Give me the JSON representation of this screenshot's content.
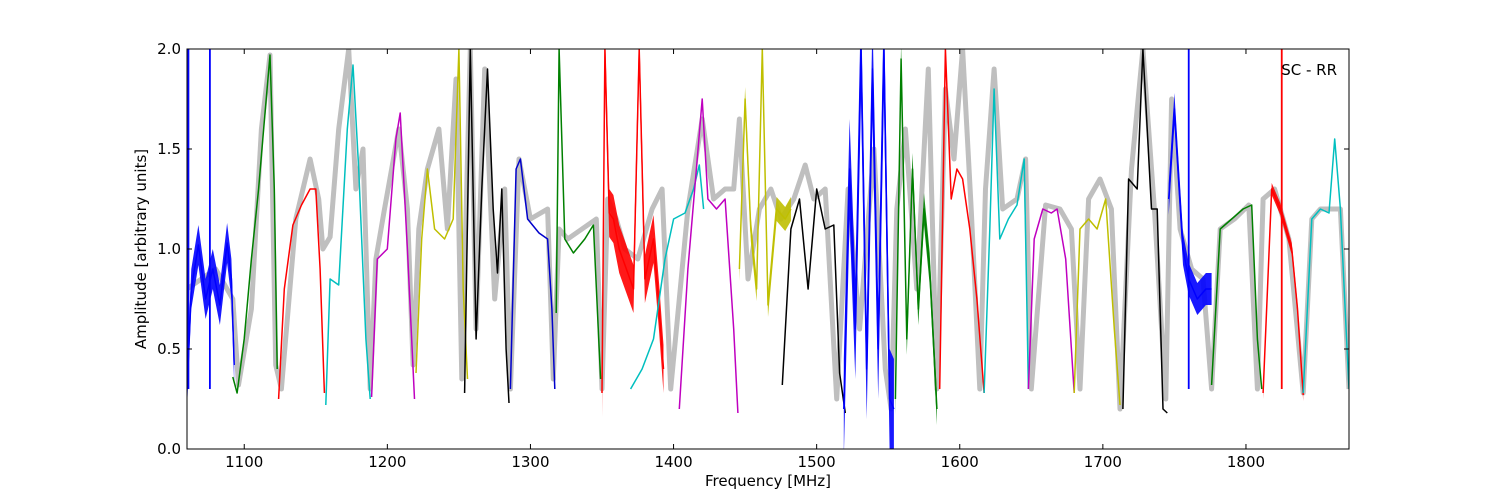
{
  "chart_data": {
    "type": "line",
    "annotation": "SC - RR",
    "xlabel": "Frequency [MHz]",
    "ylabel": "Amplitude [arbitrary units]",
    "xlim": [
      1060,
      1872
    ],
    "ylim": [
      0,
      2
    ],
    "x_ticks": [
      1100,
      1200,
      1300,
      1400,
      1500,
      1600,
      1700,
      1800
    ],
    "y_ticks": [
      0.0,
      0.5,
      1.0,
      1.5,
      2.0
    ],
    "x_tick_labels": [
      "1100",
      "1200",
      "1300",
      "1400",
      "1500",
      "1600",
      "1700",
      "1800"
    ],
    "y_tick_labels": [
      "0.0",
      "0.5",
      "1.0",
      "1.5",
      "2.0"
    ],
    "grid": false,
    "background_trace": {
      "color": "#bfbfbf",
      "x": [
        1060,
        1080,
        1092,
        1096,
        1105,
        1112,
        1118,
        1122,
        1126,
        1136,
        1146,
        1152,
        1155,
        1160,
        1166,
        1173,
        1178,
        1183,
        1188,
        1192,
        1198,
        1208,
        1214,
        1218,
        1222,
        1228,
        1236,
        1242,
        1248,
        1252,
        1258,
        1262,
        1268,
        1275,
        1282,
        1286,
        1292,
        1300,
        1312,
        1316,
        1320,
        1326,
        1336,
        1346,
        1350,
        1354,
        1360,
        1366,
        1375,
        1385,
        1392,
        1398,
        1410,
        1420,
        1428,
        1436,
        1442,
        1446,
        1452,
        1460,
        1468,
        1475,
        1484,
        1492,
        1498,
        1506,
        1514,
        1522,
        1530,
        1540,
        1548,
        1552,
        1556,
        1562,
        1570,
        1578,
        1584,
        1590,
        1596,
        1602,
        1608,
        1614,
        1618,
        1624,
        1630,
        1640,
        1646,
        1650,
        1660,
        1670,
        1678,
        1684,
        1690,
        1698,
        1706,
        1712,
        1720,
        1728,
        1736,
        1744,
        1748,
        1754,
        1762,
        1770,
        1776,
        1782,
        1792,
        1802,
        1808,
        1812,
        1820,
        1830,
        1840,
        1846,
        1852,
        1866,
        1872
      ],
      "y": [
        0.8,
        0.9,
        0.75,
        0.32,
        0.7,
        1.6,
        1.97,
        0.42,
        0.3,
        1.15,
        1.45,
        1.25,
        1.0,
        1.06,
        1.6,
        2.0,
        1.3,
        1.5,
        0.3,
        0.95,
        1.2,
        1.6,
        1.2,
        0.42,
        1.1,
        1.4,
        1.6,
        1.1,
        1.85,
        0.35,
        2.0,
        0.6,
        1.9,
        0.75,
        1.3,
        0.3,
        1.45,
        1.15,
        1.2,
        0.35,
        1.1,
        1.05,
        1.1,
        1.15,
        0.3,
        1.25,
        1.15,
        1.0,
        0.95,
        1.2,
        1.3,
        0.3,
        1.2,
        1.65,
        1.25,
        1.3,
        1.3,
        1.65,
        0.85,
        1.2,
        1.3,
        1.15,
        1.25,
        1.42,
        1.25,
        1.3,
        0.25,
        1.3,
        0.6,
        1.5,
        0.4,
        0.2,
        1.2,
        1.6,
        0.8,
        1.9,
        0.3,
        1.8,
        1.45,
        2.0,
        1.2,
        0.3,
        1.3,
        1.9,
        1.2,
        1.25,
        1.45,
        0.3,
        1.22,
        1.2,
        1.1,
        0.3,
        1.25,
        1.35,
        1.2,
        0.2,
        1.4,
        2.0,
        1.2,
        0.25,
        1.75,
        1.1,
        0.9,
        0.85,
        0.3,
        1.1,
        1.15,
        1.22,
        0.3,
        1.25,
        1.3,
        1.05,
        0.28,
        1.15,
        1.2,
        1.2,
        0.3
      ]
    },
    "series": [
      {
        "color": "#0000ff",
        "x": [
          1060,
          1063,
          1068,
          1073,
          1078,
          1083,
          1088,
          1091,
          1093
        ],
        "y": [
          0.3,
          0.8,
          1.02,
          0.75,
          0.9,
          0.72,
          1.03,
          0.85,
          0.42
        ],
        "band": 0.1,
        "spikes": [
          {
            "x": 1061,
            "y": 2.0
          },
          {
            "x": 1076,
            "y": 2.0
          }
        ]
      },
      {
        "color": "#008000",
        "x": [
          1092,
          1095,
          1100,
          1105,
          1110,
          1113,
          1118,
          1121,
          1123
        ],
        "y": [
          0.36,
          0.28,
          0.55,
          0.95,
          1.3,
          1.55,
          1.97,
          1.3,
          0.4
        ],
        "band": 0
      },
      {
        "color": "#ff0000",
        "x": [
          1124,
          1128,
          1134,
          1140,
          1146,
          1150,
          1153,
          1156
        ],
        "y": [
          0.25,
          0.8,
          1.12,
          1.22,
          1.3,
          1.3,
          0.9,
          0.28
        ],
        "band": 0
      },
      {
        "color": "#00bfbf",
        "x": [
          1157,
          1160,
          1166,
          1172,
          1176,
          1180,
          1185,
          1188
        ],
        "y": [
          0.22,
          0.85,
          0.82,
          1.6,
          1.92,
          1.4,
          0.55,
          0.25
        ],
        "band": 0
      },
      {
        "color": "#bf00bf",
        "x": [
          1189,
          1193,
          1200,
          1206,
          1209,
          1214,
          1219
        ],
        "y": [
          0.26,
          0.95,
          1.0,
          1.55,
          1.68,
          1.0,
          0.25
        ],
        "band": 0
      },
      {
        "color": "#bfbf00",
        "x": [
          1220,
          1224,
          1228,
          1233,
          1240,
          1246,
          1250,
          1253,
          1256
        ],
        "y": [
          0.38,
          1.05,
          1.4,
          1.1,
          1.05,
          1.15,
          2.0,
          0.8,
          0.35
        ],
        "band": 0
      },
      {
        "color": "#000000",
        "x": [
          1254,
          1258,
          1262,
          1266,
          1270,
          1274,
          1277,
          1280,
          1283,
          1285
        ],
        "y": [
          0.28,
          2.0,
          0.55,
          1.3,
          1.9,
          1.2,
          0.88,
          1.3,
          0.5,
          0.23
        ],
        "band": 0
      },
      {
        "color": "#0000cc",
        "x": [
          1286,
          1290,
          1293,
          1298,
          1306,
          1312,
          1315,
          1317
        ],
        "y": [
          0.3,
          1.4,
          1.45,
          1.15,
          1.08,
          1.05,
          0.7,
          0.3
        ],
        "band": 0
      },
      {
        "color": "#008000",
        "x": [
          1318,
          1320,
          1324,
          1330,
          1338,
          1344,
          1349
        ],
        "y": [
          0.68,
          2.0,
          1.05,
          0.98,
          1.05,
          1.12,
          0.35
        ],
        "band": 0
      },
      {
        "color": "#ff0000",
        "x": [
          1350,
          1352,
          1355,
          1358,
          1362,
          1368,
          1372,
          1376,
          1380,
          1386,
          1390,
          1393
        ],
        "y": [
          0.28,
          2.0,
          1.18,
          1.15,
          1.0,
          0.88,
          0.8,
          2.0,
          0.85,
          1.05,
          0.7,
          0.4
        ],
        "band": 0.12
      },
      {
        "color": "#00bfbf",
        "x": [
          1370,
          1378,
          1386,
          1394,
          1400,
          1408,
          1414,
          1418,
          1421
        ],
        "y": [
          0.3,
          0.4,
          0.55,
          0.95,
          1.15,
          1.18,
          1.3,
          1.42,
          1.2
        ],
        "band": 0
      },
      {
        "color": "#bf00bf",
        "x": [
          1404,
          1410,
          1416,
          1420,
          1424,
          1430,
          1436,
          1442,
          1445
        ],
        "y": [
          0.2,
          0.9,
          1.4,
          1.75,
          1.25,
          1.2,
          1.25,
          0.6,
          0.18
        ],
        "band": 0
      },
      {
        "color": "#bfbf00",
        "x": [
          1446,
          1450,
          1454,
          1458,
          1462,
          1466,
          1472,
          1478,
          1482
        ],
        "y": [
          0.9,
          1.75,
          1.1,
          0.8,
          2.0,
          0.72,
          1.2,
          1.15,
          1.2
        ],
        "band": 0.06
      },
      {
        "color": "#000000",
        "x": [
          1476,
          1482,
          1488,
          1494,
          1500,
          1506,
          1512,
          1516,
          1520
        ],
        "y": [
          0.32,
          1.1,
          1.25,
          0.8,
          1.3,
          1.1,
          1.12,
          0.38,
          0.18
        ],
        "band": 0
      },
      {
        "color": "#0000ff",
        "x": [
          1519,
          1523,
          1527,
          1531,
          1535,
          1539,
          1543,
          1547,
          1551,
          1554
        ],
        "y": [
          0.2,
          1.4,
          0.6,
          2.0,
          0.4,
          1.9,
          0.5,
          2.0,
          0.25,
          0.2
        ],
        "band": 0.25
      },
      {
        "color": "#008000",
        "x": [
          1555,
          1559,
          1563,
          1567,
          1571,
          1575,
          1579,
          1584
        ],
        "y": [
          0.25,
          1.95,
          0.55,
          1.4,
          0.7,
          1.2,
          0.9,
          0.2
        ],
        "band": 0.08
      },
      {
        "color": "#ff0000",
        "x": [
          1586,
          1590,
          1594,
          1598,
          1602,
          1607,
          1612,
          1617
        ],
        "y": [
          0.3,
          2.0,
          1.25,
          1.4,
          1.35,
          1.1,
          0.75,
          0.28
        ],
        "band": 0
      },
      {
        "color": "#00bfbf",
        "x": [
          1617,
          1621,
          1624,
          1628,
          1634,
          1640,
          1645,
          1648
        ],
        "y": [
          0.28,
          1.1,
          1.8,
          1.05,
          1.15,
          1.22,
          1.45,
          0.3
        ],
        "band": 0
      },
      {
        "color": "#bf00bf",
        "x": [
          1648,
          1652,
          1658,
          1664,
          1668,
          1674,
          1680
        ],
        "y": [
          0.3,
          1.05,
          1.2,
          1.18,
          1.2,
          0.95,
          0.28
        ],
        "band": 0
      },
      {
        "color": "#bfbf00",
        "x": [
          1680,
          1684,
          1690,
          1696,
          1702,
          1708,
          1712
        ],
        "y": [
          0.28,
          1.1,
          1.15,
          1.1,
          1.25,
          0.6,
          0.22
        ],
        "band": 0
      },
      {
        "color": "#000000",
        "x": [
          1714,
          1718,
          1724,
          1728,
          1734,
          1738,
          1742,
          1745
        ],
        "y": [
          0.2,
          1.35,
          1.3,
          2.0,
          1.2,
          1.2,
          0.2,
          0.18
        ],
        "band": 0
      },
      {
        "color": "#0000ff",
        "x": [
          1746,
          1750,
          1756,
          1760,
          1766,
          1772,
          1776
        ],
        "y": [
          1.25,
          1.7,
          1.0,
          0.85,
          0.75,
          0.8,
          0.8
        ],
        "band": 0.08,
        "spikes": [
          {
            "x": 1760,
            "y": 2.0
          }
        ]
      },
      {
        "color": "#008000",
        "x": [
          1776,
          1782,
          1790,
          1798,
          1804,
          1808,
          1811
        ],
        "y": [
          0.32,
          1.1,
          1.15,
          1.2,
          1.22,
          0.55,
          0.3
        ],
        "band": 0
      },
      {
        "color": "#ff0000",
        "x": [
          1812,
          1818,
          1824,
          1828,
          1832,
          1836,
          1840
        ],
        "y": [
          0.28,
          1.3,
          1.2,
          1.1,
          1.0,
          0.7,
          0.27
        ],
        "band": 0.03,
        "spikes": [
          {
            "x": 1825,
            "y": 2.0
          }
        ]
      },
      {
        "color": "#00bfbf",
        "x": [
          1840,
          1846,
          1852,
          1858,
          1862,
          1866,
          1870,
          1872
        ],
        "y": [
          0.28,
          1.15,
          1.2,
          1.18,
          1.55,
          1.2,
          0.6,
          0.3
        ],
        "band": 0
      }
    ]
  }
}
